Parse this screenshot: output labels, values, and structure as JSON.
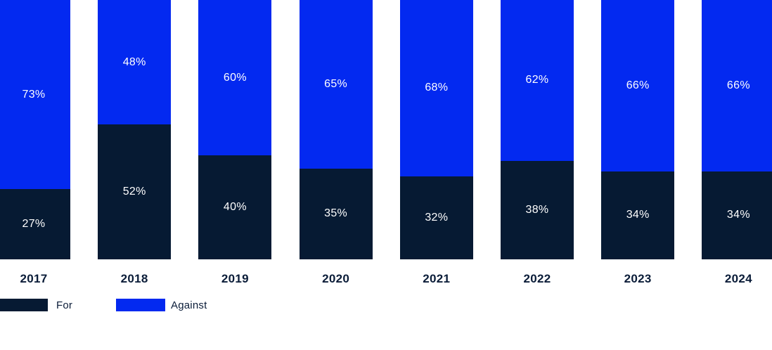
{
  "chart_data": {
    "type": "bar",
    "stacked": true,
    "orientation": "vertical",
    "title": "",
    "xlabel": "",
    "ylabel": "",
    "ylim": [
      0,
      100
    ],
    "grid": false,
    "axes_visible": false,
    "value_suffix": "%",
    "legend_position": "bottom-left",
    "categories": [
      "2017",
      "2018",
      "2019",
      "2020",
      "2021",
      "2022",
      "2023",
      "2024"
    ],
    "series": [
      {
        "name": "For",
        "color": "#061a33",
        "stack_position": "bottom",
        "values": [
          27,
          52,
          40,
          35,
          32,
          38,
          34,
          34
        ]
      },
      {
        "name": "Against",
        "color": "#0329f0",
        "stack_position": "top",
        "values": [
          73,
          48,
          60,
          65,
          68,
          62,
          66,
          66
        ]
      }
    ]
  },
  "colors": {
    "for_navy": "#061a33",
    "against_blue": "#0329f0",
    "label_on_bar": "#ffffff",
    "axis_text": "#0a1c38",
    "background": "#ffffff"
  },
  "legend": {
    "for_label": "For",
    "against_label": "Against"
  }
}
